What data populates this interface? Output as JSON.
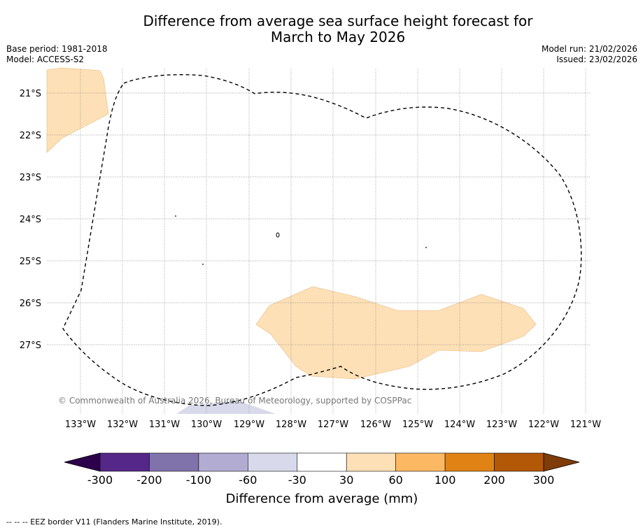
{
  "title_line1": "Difference from average sea surface height forecast for",
  "title_line2": "March to May 2026",
  "base_period": "Base period: 1981-2018",
  "model": "Model: ACCESS-S2",
  "model_run": "Model run: 21/02/2026",
  "issued": "Issued: 23/02/2026",
  "copyright": "© Commonwealth of Australia 2026, Bureau of Meteorology, supported by COSPPac",
  "footer": "--  --  -- EEZ border V11 (Flanders Marine Institute, 2019).",
  "map": {
    "lat_labels": [
      "21°S",
      "22°S",
      "23°S",
      "24°S",
      "25°S",
      "26°S",
      "27°S"
    ],
    "lon_labels": [
      "133°W",
      "132°W",
      "131°W",
      "130°W",
      "129°W",
      "128°W",
      "127°W",
      "126°W",
      "125°W",
      "124°W",
      "123°W",
      "122°W",
      "121°W"
    ]
  },
  "colorbar": {
    "title": "Difference from average (mm)",
    "tick_labels": [
      "-300",
      "-200",
      "-100",
      "-60",
      "-30",
      "30",
      "60",
      "100",
      "200",
      "300"
    ],
    "colors": {
      "below_min": "#2d004b",
      "bins": [
        "#542788",
        "#8073ac",
        "#b2abd2",
        "#d8daeb",
        "#ffffff",
        "#fee0b6",
        "#fdb863",
        "#e08214",
        "#b35806"
      ],
      "above_max": "#7f3b08"
    }
  }
}
